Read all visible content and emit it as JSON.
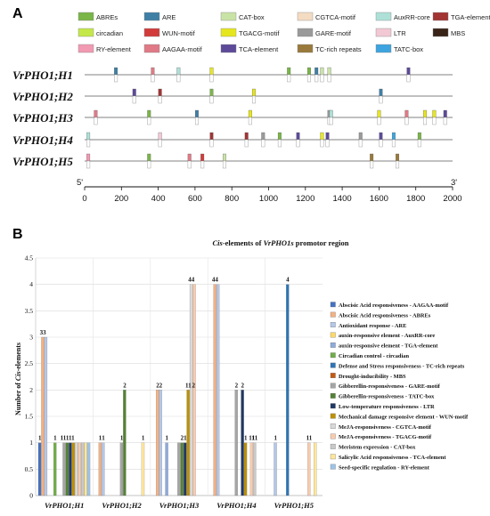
{
  "panel_a": {
    "letter": "A",
    "motifs": [
      {
        "name": "ABREs",
        "color": "#7ab648"
      },
      {
        "name": "ARE",
        "color": "#3f7fa6"
      },
      {
        "name": "CAT-box",
        "color": "#c9e3a6"
      },
      {
        "name": "CGTCA-motif",
        "color": "#f3dcc2"
      },
      {
        "name": "AuxRR-core",
        "color": "#aee0d8"
      },
      {
        "name": "TGA-element",
        "color": "#a23434"
      },
      {
        "name": "circadian",
        "color": "#c4e84a"
      },
      {
        "name": "WUN-motif",
        "color": "#d23b3b"
      },
      {
        "name": "TGACG-motif",
        "color": "#e6e61f"
      },
      {
        "name": "GARE-motif",
        "color": "#9a9a9a"
      },
      {
        "name": "LTR",
        "color": "#f2c8d4"
      },
      {
        "name": "MBS",
        "color": "#3a2418"
      },
      {
        "name": "RY-element",
        "color": "#f29ab2"
      },
      {
        "name": "AAGAA-motif",
        "color": "#e07a86"
      },
      {
        "name": "TCA-element",
        "color": "#5d4a99"
      },
      {
        "name": "TC-rich repeats",
        "color": "#9a7a3c"
      },
      {
        "name": "TATC-box",
        "color": "#3da4e0"
      }
    ],
    "genes": [
      {
        "name": "VrPHO1;H1",
        "elements": [
          {
            "pos": 170,
            "color": "#3f7fa6"
          },
          {
            "pos": 370,
            "color": "#e07a86"
          },
          {
            "pos": 510,
            "color": "#aee0d8"
          },
          {
            "pos": 690,
            "color": "#e6e61f"
          },
          {
            "pos": 1110,
            "color": "#7ab648"
          },
          {
            "pos": 1220,
            "color": "#7ab648"
          },
          {
            "pos": 1260,
            "color": "#3f7fa6"
          },
          {
            "pos": 1290,
            "color": "#c9e3a6"
          },
          {
            "pos": 1330,
            "color": "#c9e3a6"
          },
          {
            "pos": 1760,
            "color": "#5d4a99"
          }
        ]
      },
      {
        "name": "VrPHO1;H2",
        "elements": [
          {
            "pos": 270,
            "color": "#5d4a99"
          },
          {
            "pos": 410,
            "color": "#a23434"
          },
          {
            "pos": 690,
            "color": "#7ab648"
          },
          {
            "pos": 920,
            "color": "#e6e61f"
          },
          {
            "pos": 1610,
            "color": "#3f7fa6"
          }
        ]
      },
      {
        "name": "VrPHO1;H3",
        "elements": [
          {
            "pos": 60,
            "color": "#e07a86"
          },
          {
            "pos": 350,
            "color": "#7ab648"
          },
          {
            "pos": 610,
            "color": "#3f7fa6"
          },
          {
            "pos": 900,
            "color": "#e6e61f"
          },
          {
            "pos": 1330,
            "color": "#9a9a9a"
          },
          {
            "pos": 1340,
            "color": "#aee0d8"
          },
          {
            "pos": 1600,
            "color": "#e6e61f"
          },
          {
            "pos": 1750,
            "color": "#e07a86"
          },
          {
            "pos": 1850,
            "color": "#e6e61f"
          },
          {
            "pos": 1900,
            "color": "#e6e61f"
          },
          {
            "pos": 1960,
            "color": "#5d4a99"
          }
        ]
      },
      {
        "name": "VrPHO1;H4",
        "elements": [
          {
            "pos": 20,
            "color": "#aee0d8"
          },
          {
            "pos": 410,
            "color": "#f2c8d4"
          },
          {
            "pos": 690,
            "color": "#a23434"
          },
          {
            "pos": 880,
            "color": "#a23434"
          },
          {
            "pos": 970,
            "color": "#9a9a9a"
          },
          {
            "pos": 1060,
            "color": "#7ab648"
          },
          {
            "pos": 1160,
            "color": "#5d4a99"
          },
          {
            "pos": 1290,
            "color": "#e6e61f"
          },
          {
            "pos": 1320,
            "color": "#5d4a99"
          },
          {
            "pos": 1500,
            "color": "#9a9a9a"
          },
          {
            "pos": 1610,
            "color": "#5d4a99"
          },
          {
            "pos": 1680,
            "color": "#3da4e0"
          },
          {
            "pos": 1820,
            "color": "#7ab648"
          }
        ]
      },
      {
        "name": "VrPHO1;H5",
        "elements": [
          {
            "pos": 20,
            "color": "#f29ab2"
          },
          {
            "pos": 350,
            "color": "#7ab648"
          },
          {
            "pos": 570,
            "color": "#e07a86"
          },
          {
            "pos": 640,
            "color": "#d23b3b"
          },
          {
            "pos": 760,
            "color": "#c9e3a6"
          },
          {
            "pos": 1560,
            "color": "#9a7a3c"
          },
          {
            "pos": 1700,
            "color": "#9a7a3c"
          }
        ]
      }
    ],
    "scale": {
      "start_label": "5'",
      "end_label": "3'",
      "min": 0,
      "max": 2000,
      "ticks": [
        "0",
        "200",
        "400",
        "600",
        "800",
        "1000",
        "1200",
        "1400",
        "1600",
        "1800",
        "2000"
      ]
    }
  },
  "panel_b": {
    "letter": "B",
    "chart_data": {
      "type": "bar",
      "title_italic": "Cis",
      "title_rest": "-elements of ",
      "title_gene": "VrPHO1s",
      "title_tail": " promotor region",
      "ylabel_pre": "Number of ",
      "ylabel_italic": "Cis",
      "ylabel_post": "-elements",
      "ylim": [
        0,
        4.5
      ],
      "yticks": [
        "0",
        "0.5",
        "1",
        "1.5",
        "2",
        "2.5",
        "3",
        "3.5",
        "4",
        "4.5"
      ],
      "grid": true,
      "legend_position": "right",
      "categories": [
        "VrPHO1;H1",
        "VrPHO1;H2",
        "VrPHO1;H3",
        "VrPHO1;H4",
        "VrPHO1;H5"
      ],
      "series": [
        {
          "name": "Abscisic Acid responsiveness - AAGAA-motif",
          "color": "#4472c4",
          "values": [
            1,
            0,
            0,
            0,
            0
          ]
        },
        {
          "name": "Abscisic Acid responsiveness - ABREs",
          "color": "#f4b183",
          "values": [
            3,
            1,
            2,
            4,
            0
          ]
        },
        {
          "name": "Antioxidant response - ARE",
          "color": "#b4c7e7",
          "values": [
            3,
            1,
            2,
            4,
            1
          ]
        },
        {
          "name": "auxin-responsive element - AuxRR-core",
          "color": "#ffd966",
          "values": [
            0,
            0,
            0,
            0,
            0
          ]
        },
        {
          "name": "auxin-responsive element - TGA-element",
          "color": "#8faadc",
          "values": [
            0,
            0,
            1,
            0,
            0
          ]
        },
        {
          "name": "Circadian control - circadian",
          "color": "#70ad47",
          "values": [
            1,
            0,
            0,
            0,
            0
          ]
        },
        {
          "name": "Defense and Stress responsiveness - TC-rich repeats",
          "color": "#2e75b6",
          "values": [
            0,
            0,
            0,
            0,
            4
          ]
        },
        {
          "name": "Drought-inducibility - MBS",
          "color": "#c55a11",
          "values": [
            0,
            0,
            0,
            0,
            0
          ]
        },
        {
          "name": "Gibberellin-responsiveness - GARE-motif",
          "color": "#a5a5a5",
          "values": [
            1,
            1,
            1,
            2,
            0
          ]
        },
        {
          "name": "Gibberellin-responsiveness - TATC-box",
          "color": "#548235",
          "values": [
            1,
            2,
            1,
            0,
            0
          ]
        },
        {
          "name": "Low-temperature responsiveness - LTR",
          "color": "#203864",
          "values": [
            1,
            0,
            1,
            2,
            0
          ]
        },
        {
          "name": "Mechanical damage responsive element - WUN-motif",
          "color": "#bf9000",
          "values": [
            1,
            0,
            2,
            1,
            0
          ]
        },
        {
          "name": "MeJA-responsiveness - CGTCA-motif",
          "color": "#d9d9d9",
          "values": [
            1,
            0,
            4,
            0,
            0
          ]
        },
        {
          "name": "MeJA-responsiveness - TGACG-motif",
          "color": "#f8cbad",
          "values": [
            1,
            0,
            4,
            1,
            1
          ]
        },
        {
          "name": "Meristem expression - CAT-box",
          "color": "#c9c9c9",
          "values": [
            1,
            0,
            0,
            1,
            0
          ]
        },
        {
          "name": "Salicylic Acid responsiveness - TCA-element",
          "color": "#ffe699",
          "values": [
            1,
            1,
            0,
            0,
            1
          ]
        },
        {
          "name": "Seed-specific regulation - RY-element",
          "color": "#9dc3e6",
          "values": [
            1,
            0,
            0,
            0,
            0
          ]
        }
      ],
      "data_labels": [
        {
          "group": 0,
          "labels": [
            "1",
            "33",
            "1",
            "11111"
          ]
        },
        {
          "group": 1,
          "labels": [
            "1",
            "1",
            "1",
            "2",
            "1"
          ]
        },
        {
          "group": 2,
          "labels": [
            "2",
            "2",
            "1",
            "2",
            "1",
            "11",
            "2",
            "44"
          ]
        },
        {
          "group": 3,
          "labels": [
            "44",
            "2",
            "2",
            "1",
            "11",
            "11"
          ]
        },
        {
          "group": 4,
          "labels": [
            "1",
            "4",
            "11"
          ]
        }
      ]
    }
  }
}
